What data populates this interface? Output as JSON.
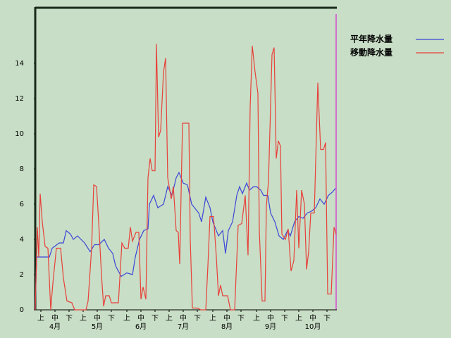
{
  "chart_data": {
    "type": "line",
    "xlim": [
      0,
      214
    ],
    "ylim": [
      0,
      17.2
    ],
    "yticks": [
      0,
      2,
      4,
      6,
      8,
      10,
      12,
      14
    ],
    "xticks": [
      {
        "value": 4,
        "label": "上"
      },
      {
        "value": 14,
        "label": "中"
      },
      {
        "value": 24,
        "label": "下"
      },
      {
        "value": 34,
        "label": "上"
      },
      {
        "value": 44,
        "label": "中"
      },
      {
        "value": 54,
        "label": "下"
      },
      {
        "value": 65,
        "label": "上"
      },
      {
        "value": 75,
        "label": "中"
      },
      {
        "value": 85,
        "label": "下"
      },
      {
        "value": 95,
        "label": "上"
      },
      {
        "value": 105,
        "label": "中"
      },
      {
        "value": 115,
        "label": "下"
      },
      {
        "value": 126,
        "label": "上"
      },
      {
        "value": 136,
        "label": "中"
      },
      {
        "value": 146,
        "label": "下"
      },
      {
        "value": 157,
        "label": "上"
      },
      {
        "value": 167,
        "label": "中"
      },
      {
        "value": 177,
        "label": "下"
      },
      {
        "value": 187,
        "label": "上"
      },
      {
        "value": 197,
        "label": "中"
      },
      {
        "value": 207,
        "label": "下"
      }
    ],
    "month_labels": [
      {
        "value": 14,
        "label": "4月"
      },
      {
        "value": 44,
        "label": "5月"
      },
      {
        "value": 75,
        "label": "6月"
      },
      {
        "value": 105,
        "label": "7月"
      },
      {
        "value": 136,
        "label": "8月"
      },
      {
        "value": 167,
        "label": "9月"
      },
      {
        "value": 197,
        "label": "10月"
      }
    ],
    "legend": "right",
    "grid": false,
    "series": [
      {
        "name": "平年降水量",
        "color": "#3c46d8",
        "x": [
          0,
          1,
          5,
          10,
          12,
          17,
          20,
          22,
          25,
          27,
          30,
          35,
          39,
          42,
          45,
          49,
          52,
          55,
          57,
          61,
          65,
          69,
          71,
          74,
          77,
          80,
          81,
          84,
          87,
          91,
          94,
          97,
          100,
          102,
          105,
          108,
          111,
          113,
          116,
          118,
          121,
          124,
          126,
          130,
          133,
          135,
          137,
          140,
          143,
          145,
          147,
          150,
          152,
          155,
          157,
          160,
          162,
          165,
          167,
          170,
          173,
          176,
          179,
          181,
          184,
          187,
          190,
          193,
          196,
          199,
          202,
          205,
          208,
          211,
          213
        ],
        "values": [
          0,
          3,
          3,
          3,
          3.5,
          3.8,
          3.8,
          4.5,
          4.3,
          4.0,
          4.2,
          3.8,
          3.3,
          3.7,
          3.7,
          4.0,
          3.5,
          3.2,
          2.5,
          1.9,
          2.1,
          2.0,
          3.0,
          4.0,
          4.5,
          4.6,
          6.0,
          6.5,
          5.8,
          6.0,
          7.0,
          6.5,
          7.5,
          7.8,
          7.2,
          7.1,
          6.0,
          5.8,
          5.5,
          5.0,
          6.4,
          5.8,
          5.0,
          4.2,
          4.5,
          3.2,
          4.5,
          5.0,
          6.5,
          7.0,
          6.6,
          7.2,
          6.8,
          7.0,
          7.0,
          6.8,
          6.5,
          6.5,
          5.5,
          5.0,
          4.2,
          4.0,
          4.5,
          4.2,
          5.0,
          5.3,
          5.2,
          5.5,
          5.6,
          5.8,
          6.3,
          6.0,
          6.5,
          6.7,
          6.9
        ]
      },
      {
        "name": "移動降水量",
        "color": "#e8403a",
        "x": [
          0,
          1.5,
          2.5,
          3.5,
          5,
          7,
          9,
          11,
          12.5,
          15,
          18,
          20,
          22.5,
          26,
          28,
          36,
          37.5,
          40,
          41.5,
          43.5,
          45,
          47,
          48.5,
          50,
          52.5,
          54,
          59,
          61.5,
          63.5,
          66,
          67.5,
          69,
          71.5,
          73.5,
          75,
          76.5,
          78.5,
          80,
          81.5,
          83,
          85,
          86,
          87.5,
          89,
          91,
          92.5,
          94,
          96.5,
          98,
          100,
          101.5,
          102.5,
          104.5,
          109,
          110,
          111.5,
          115,
          117.5,
          121,
          122.5,
          124,
          126.5,
          128.5,
          130,
          131.5,
          133,
          136.5,
          138.5,
          141.5,
          144,
          146.5,
          149,
          151,
          152.5,
          154,
          156,
          158,
          159,
          161,
          163,
          164,
          165.5,
          168,
          169.5,
          171,
          172.5,
          174,
          175,
          177.5,
          179.5,
          181.5,
          183.5,
          185.5,
          187,
          189,
          191,
          192.5,
          194,
          195.5,
          198,
          200.5,
          202.5,
          204.5,
          206,
          207.5,
          210,
          212,
          213.5
        ],
        "values": [
          0,
          4.7,
          3,
          6.6,
          5,
          3.6,
          3.5,
          0,
          1.5,
          3.5,
          3.5,
          1.8,
          0.5,
          0.4,
          0,
          0,
          0.5,
          3.5,
          7.1,
          7.0,
          5,
          2,
          0.2,
          0.8,
          0.8,
          0.4,
          0.4,
          3.8,
          3.5,
          3.5,
          4.7,
          3.9,
          4.4,
          4.4,
          0.6,
          1.3,
          0.6,
          7.5,
          8.6,
          7.9,
          7.9,
          15.1,
          9.8,
          10.2,
          13.5,
          14.3,
          7.5,
          6.3,
          7.0,
          4.5,
          4.4,
          2.6,
          10.6,
          10.6,
          4.0,
          0.1,
          0.1,
          0,
          0,
          2.5,
          5.3,
          5.3,
          3,
          0.8,
          1.4,
          0.8,
          0.8,
          0,
          0,
          4.8,
          4.9,
          6.5,
          3.1,
          11.5,
          15.0,
          13.5,
          12.3,
          4.5,
          0.5,
          0.5,
          5.9,
          7.3,
          14.5,
          14.9,
          8.6,
          9.6,
          9.3,
          4.3,
          4.0,
          4.6,
          2.2,
          2.8,
          6.8,
          3.5,
          6.8,
          6.0,
          2.3,
          3.3,
          5.5,
          5.5,
          12.9,
          9.1,
          9.1,
          9.5,
          0.9,
          0.9,
          4.7,
          4.3
        ]
      }
    ]
  }
}
